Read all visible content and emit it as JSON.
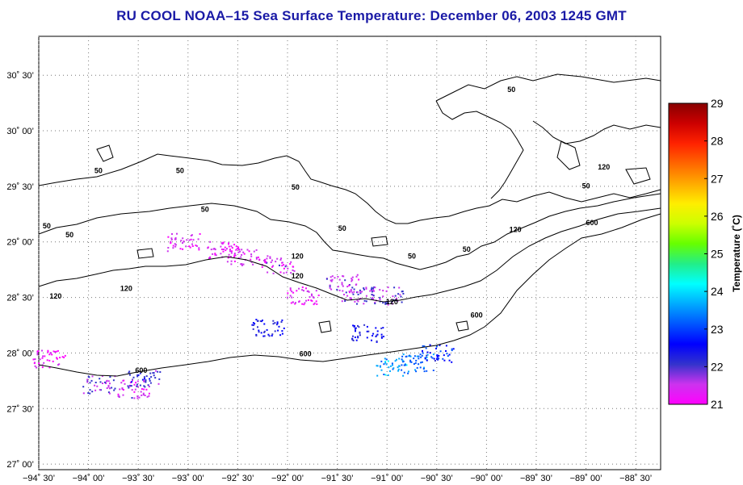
{
  "title": "RU COOL  NOAA–15  Sea Surface Temperature:  December 06, 2003 1245 GMT",
  "map": {
    "lat_labels": [
      "30˚ 30’",
      "30˚ 00’",
      "29˚ 30’",
      "29˚ 00’",
      "28˚ 30’",
      "28˚ 00’",
      "27˚ 30’",
      "27˚ 00’"
    ],
    "lon_labels": [
      "−94˚ 30’",
      "−94˚ 00’",
      "−93˚ 30’",
      "−93˚ 00’",
      "−92˚ 30’",
      "−92˚ 00’",
      "−91˚ 30’",
      "−91˚ 00’",
      "−90˚ 30’",
      "−90˚ 00’",
      "−89˚ 30’",
      "−89˚ 00’",
      "−88˚ 30’"
    ],
    "grid": "dotted",
    "contour_labels": [
      {
        "text": "50",
        "lon": -93.9,
        "lat": 29.62
      },
      {
        "text": "50",
        "lon": -93.08,
        "lat": 29.62
      },
      {
        "text": "50",
        "lon": -92.83,
        "lat": 29.27
      },
      {
        "text": "50",
        "lon": -94.42,
        "lat": 29.12
      },
      {
        "text": "50",
        "lon": -94.19,
        "lat": 29.04
      },
      {
        "text": "50",
        "lon": -91.92,
        "lat": 29.47
      },
      {
        "text": "50",
        "lon": -91.45,
        "lat": 29.1
      },
      {
        "text": "50",
        "lon": -90.75,
        "lat": 28.85
      },
      {
        "text": "50",
        "lon": -90.2,
        "lat": 28.91
      },
      {
        "text": "50",
        "lon": -89.75,
        "lat": 30.35
      },
      {
        "text": "50",
        "lon": -89.0,
        "lat": 29.48
      },
      {
        "text": "120",
        "lon": -91.9,
        "lat": 28.85
      },
      {
        "text": "120",
        "lon": -91.9,
        "lat": 28.67
      },
      {
        "text": "120",
        "lon": -93.62,
        "lat": 28.56
      },
      {
        "text": "120",
        "lon": -94.33,
        "lat": 28.49
      },
      {
        "text": "120",
        "lon": -90.95,
        "lat": 28.44
      },
      {
        "text": "120",
        "lon": -89.71,
        "lat": 29.09
      },
      {
        "text": "120",
        "lon": -88.82,
        "lat": 29.65
      },
      {
        "text": "600",
        "lon": -93.47,
        "lat": 27.82
      },
      {
        "text": "600",
        "lon": -91.82,
        "lat": 27.97
      },
      {
        "text": "600",
        "lon": -90.1,
        "lat": 28.32
      },
      {
        "text": "600",
        "lon": -88.94,
        "lat": 29.15
      }
    ]
  },
  "colorbar": {
    "label": "Temperature (˚C)",
    "ticks": [
      "29",
      "28",
      "27",
      "26",
      "25",
      "24",
      "23",
      "22",
      "21"
    ],
    "colors": [
      "#ff00ff",
      "#cc33ee",
      "#3333cc",
      "#0000ff",
      "#0055ff",
      "#00aaff",
      "#00ffff",
      "#22ee88",
      "#66ff00",
      "#ccff00",
      "#ffee00",
      "#ffaa00",
      "#ff6600",
      "#ff2200",
      "#cc0000",
      "#880000"
    ]
  },
  "chart_data": {
    "type": "heatmap",
    "title": "RU COOL  NOAA–15  Sea Surface Temperature:  December 06, 2003 1245 GMT",
    "xlabel": "",
    "ylabel": "",
    "xlim": [
      -94.5,
      -88.25
    ],
    "ylim": [
      26.95,
      30.85
    ],
    "value_label": "Temperature (˚C)",
    "value_range": [
      21,
      29
    ],
    "sst_patches": [
      {
        "lon": -92.65,
        "lat": 28.93,
        "value": 21.3
      },
      {
        "lon": -92.45,
        "lat": 28.87,
        "value": 21.4
      },
      {
        "lon": -92.1,
        "lat": 28.8,
        "value": 21.5
      },
      {
        "lon": -93.05,
        "lat": 29.0,
        "value": 21.4
      },
      {
        "lon": -91.45,
        "lat": 28.63,
        "value": 21.6
      },
      {
        "lon": -91.3,
        "lat": 28.52,
        "value": 21.7
      },
      {
        "lon": -91.0,
        "lat": 28.52,
        "value": 21.8
      },
      {
        "lon": -91.85,
        "lat": 28.52,
        "value": 21.4
      },
      {
        "lon": -91.2,
        "lat": 28.18,
        "value": 22.4
      },
      {
        "lon": -90.95,
        "lat": 27.88,
        "value": 23.6
      },
      {
        "lon": -90.7,
        "lat": 27.92,
        "value": 23.3
      },
      {
        "lon": -90.5,
        "lat": 28.0,
        "value": 22.7
      },
      {
        "lon": -92.2,
        "lat": 28.23,
        "value": 22.3
      },
      {
        "lon": -94.4,
        "lat": 27.95,
        "value": 21.2
      },
      {
        "lon": -93.9,
        "lat": 27.72,
        "value": 21.8
      },
      {
        "lon": -93.55,
        "lat": 27.68,
        "value": 21.5
      },
      {
        "lon": -93.45,
        "lat": 27.78,
        "value": 22.0
      }
    ]
  }
}
